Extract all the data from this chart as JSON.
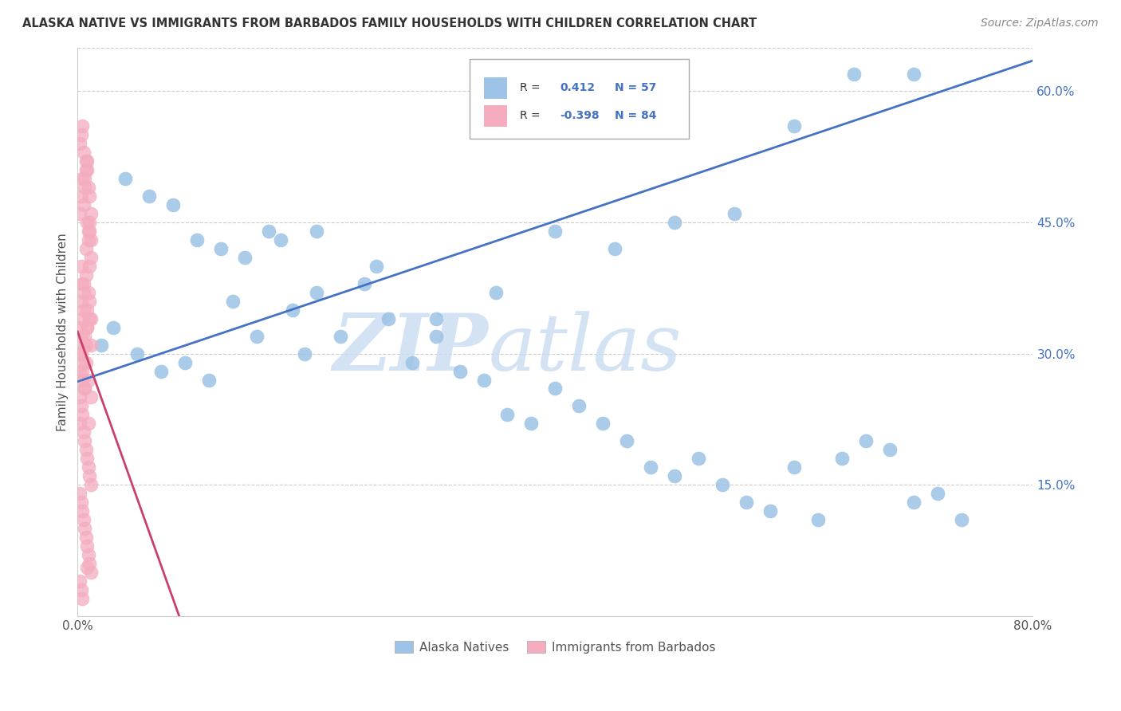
{
  "title": "ALASKA NATIVE VS IMMIGRANTS FROM BARBADOS FAMILY HOUSEHOLDS WITH CHILDREN CORRELATION CHART",
  "source": "Source: ZipAtlas.com",
  "ylabel": "Family Households with Children",
  "xlim": [
    0.0,
    0.8
  ],
  "ylim": [
    0.0,
    0.65
  ],
  "ytick_vals": [
    0.15,
    0.3,
    0.45,
    0.6
  ],
  "ytick_labels": [
    "15.0%",
    "30.0%",
    "45.0%",
    "60.0%"
  ],
  "legend_r1": "R =",
  "legend_v1": "0.412",
  "legend_n1": "N = 57",
  "legend_r2": "R =",
  "legend_v2": "-0.398",
  "legend_n2": "N = 84",
  "blue_color": "#9DC3E6",
  "pink_color": "#F4ACBE",
  "trendline_blue": "#4472C4",
  "trendline_pink": "#C9406A",
  "background": "#FFFFFF",
  "blue_trend_x0": 0.0,
  "blue_trend_y0": 0.268,
  "blue_trend_x1": 0.8,
  "blue_trend_y1": 0.635,
  "pink_trend_x0": 0.0,
  "pink_trend_y0": 0.325,
  "pink_trend_x1": 0.085,
  "pink_trend_y1": 0.0,
  "alaska_x": [
    0.02,
    0.04,
    0.06,
    0.08,
    0.1,
    0.12,
    0.14,
    0.16,
    0.18,
    0.2,
    0.03,
    0.05,
    0.07,
    0.09,
    0.11,
    0.13,
    0.15,
    0.17,
    0.19,
    0.22,
    0.24,
    0.26,
    0.28,
    0.3,
    0.32,
    0.34,
    0.36,
    0.38,
    0.4,
    0.42,
    0.44,
    0.46,
    0.48,
    0.5,
    0.52,
    0.54,
    0.56,
    0.58,
    0.6,
    0.62,
    0.64,
    0.66,
    0.68,
    0.7,
    0.72,
    0.74,
    0.2,
    0.25,
    0.3,
    0.35,
    0.4,
    0.45,
    0.5,
    0.55,
    0.6,
    0.65,
    0.7
  ],
  "alaska_y": [
    0.31,
    0.5,
    0.48,
    0.47,
    0.43,
    0.42,
    0.41,
    0.44,
    0.35,
    0.37,
    0.33,
    0.3,
    0.28,
    0.29,
    0.27,
    0.36,
    0.32,
    0.43,
    0.3,
    0.32,
    0.38,
    0.34,
    0.29,
    0.34,
    0.28,
    0.27,
    0.23,
    0.22,
    0.26,
    0.24,
    0.22,
    0.2,
    0.17,
    0.16,
    0.18,
    0.15,
    0.13,
    0.12,
    0.17,
    0.11,
    0.18,
    0.2,
    0.19,
    0.13,
    0.14,
    0.11,
    0.44,
    0.4,
    0.32,
    0.37,
    0.44,
    0.42,
    0.45,
    0.46,
    0.56,
    0.62,
    0.62
  ],
  "barbados_x": [
    0.002,
    0.003,
    0.004,
    0.005,
    0.006,
    0.007,
    0.008,
    0.009,
    0.01,
    0.011,
    0.002,
    0.003,
    0.004,
    0.005,
    0.006,
    0.007,
    0.008,
    0.009,
    0.01,
    0.011,
    0.002,
    0.003,
    0.004,
    0.005,
    0.006,
    0.007,
    0.008,
    0.009,
    0.01,
    0.011,
    0.002,
    0.003,
    0.004,
    0.005,
    0.006,
    0.007,
    0.008,
    0.009,
    0.01,
    0.011,
    0.002,
    0.003,
    0.004,
    0.005,
    0.006,
    0.007,
    0.008,
    0.009,
    0.01,
    0.011,
    0.002,
    0.003,
    0.004,
    0.005,
    0.006,
    0.007,
    0.008,
    0.009,
    0.01,
    0.011,
    0.002,
    0.003,
    0.004,
    0.005,
    0.006,
    0.007,
    0.008,
    0.009,
    0.01,
    0.011,
    0.002,
    0.003,
    0.004,
    0.005,
    0.006,
    0.007,
    0.008,
    0.009,
    0.01,
    0.011,
    0.002,
    0.003,
    0.004,
    0.008
  ],
  "barbados_y": [
    0.3,
    0.32,
    0.28,
    0.35,
    0.31,
    0.29,
    0.33,
    0.27,
    0.36,
    0.34,
    0.25,
    0.4,
    0.38,
    0.37,
    0.26,
    0.42,
    0.45,
    0.43,
    0.44,
    0.41,
    0.33,
    0.36,
    0.34,
    0.38,
    0.32,
    0.39,
    0.35,
    0.37,
    0.4,
    0.31,
    0.28,
    0.3,
    0.27,
    0.29,
    0.26,
    0.31,
    0.33,
    0.22,
    0.34,
    0.25,
    0.22,
    0.24,
    0.23,
    0.21,
    0.2,
    0.19,
    0.18,
    0.17,
    0.16,
    0.15,
    0.14,
    0.13,
    0.12,
    0.11,
    0.1,
    0.09,
    0.08,
    0.07,
    0.06,
    0.05,
    0.46,
    0.48,
    0.5,
    0.47,
    0.49,
    0.51,
    0.52,
    0.44,
    0.45,
    0.43,
    0.54,
    0.55,
    0.56,
    0.53,
    0.5,
    0.52,
    0.51,
    0.49,
    0.48,
    0.46,
    0.04,
    0.03,
    0.02,
    0.055
  ]
}
